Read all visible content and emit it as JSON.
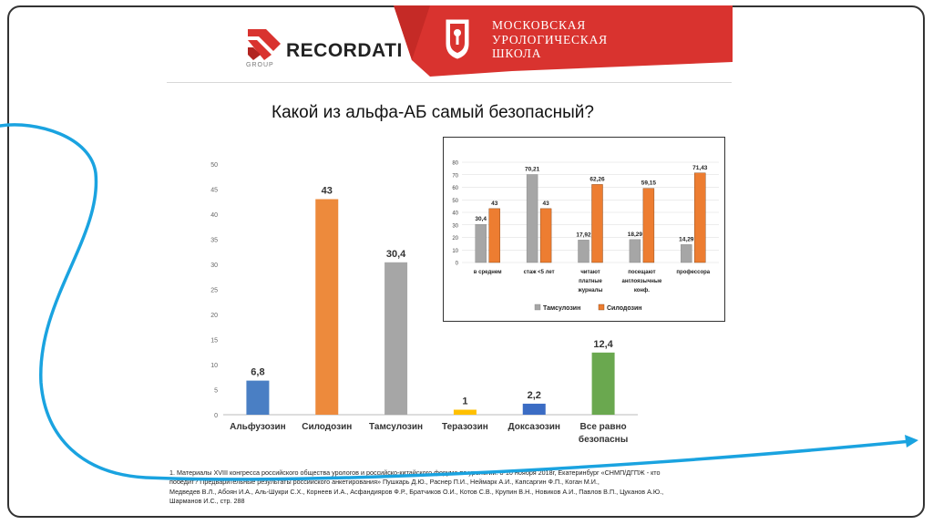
{
  "logo": {
    "brand": "RECORDATI",
    "group": "GROUP"
  },
  "school": {
    "lines": [
      "МОСКОВСКАЯ",
      "УРОЛОГИЧЕСКАЯ",
      "ШКОЛА"
    ]
  },
  "title": "Какой из альфа-АБ самый безопасный?",
  "chart_data": [
    {
      "type": "bar",
      "categories": [
        "Альфузозин",
        "Силодозин",
        "Тамсулозин",
        "Теразозин",
        "Доксазозин",
        "Все равно безопасны"
      ],
      "category_lines": [
        [
          "Альфузозин"
        ],
        [
          "Силодозин"
        ],
        [
          "Тамсулозин"
        ],
        [
          "Теразозин"
        ],
        [
          "Доксазозин"
        ],
        [
          "Все равно",
          "безопасны"
        ]
      ],
      "values": [
        6.8,
        43,
        30.4,
        1,
        2.2,
        12.4
      ],
      "value_labels": [
        "6,8",
        "43",
        "30,4",
        "1",
        "2,2",
        "12,4"
      ],
      "colors": [
        "#4a7fc4",
        "#ed8a3c",
        "#a6a6a6",
        "#ffc000",
        "#3b6cc4",
        "#6aa84f"
      ],
      "ylim": [
        0,
        50
      ],
      "yticks": [
        0,
        5,
        10,
        15,
        20,
        25,
        30,
        35,
        40,
        45,
        50
      ],
      "grid": false
    },
    {
      "type": "bar",
      "categories": [
        "в среднем",
        "стаж <5 лет",
        "читают платные журналы",
        "посещают англоязычные конф.",
        "профессора"
      ],
      "category_lines": [
        [
          "в среднем"
        ],
        [
          "стаж <5 лет"
        ],
        [
          "читают",
          "платные",
          "журналы"
        ],
        [
          "посещают",
          "англоязычные",
          "конф."
        ],
        [
          "профессора"
        ]
      ],
      "series": [
        {
          "name": "Тамсулозин",
          "values": [
            30.4,
            70.21,
            17.92,
            18.29,
            14.29
          ],
          "labels": [
            "30,4",
            "70,21",
            "17,92",
            "18,29",
            "14,29"
          ],
          "color": "#a6a6a6"
        },
        {
          "name": "Силодозин",
          "values": [
            43,
            43,
            62.26,
            59.15,
            71.43
          ],
          "labels": [
            "43",
            "43",
            "62,26",
            "59,15",
            "71,43"
          ],
          "color": "#ed7d31"
        }
      ],
      "ylim": [
        0,
        80
      ],
      "yticks": [
        0,
        10,
        20,
        30,
        40,
        50,
        60,
        70,
        80
      ],
      "grid": true,
      "legend": "bottom"
    }
  ],
  "footnote": {
    "lines": [
      "1. Материалы XVIII конгресса российского общества урологов и российско-китайского форума по урологии. 8-10 ноября 2018г, Екатеринбург «СНМП/ДГПЖ - кто",
      "победит? Предварительные результаты российского анкетирования» Пушкарь Д.Ю., Раснер П.И., Неймарк А.И., Капсаргин Ф.П., Коган М.И.,",
      "Медведев В.Л., Абоян И.А., Аль-Шукри С.Х., Корнеев И.А., Асфандияров Ф.Р., Братчиков О.И., Котов С.В., Крупин В.Н., Новиков А.И., Павлов В.П., Цуканов А.Ю.,",
      "Шарманов И.С., стр. 288"
    ]
  },
  "colors": {
    "banner_red": "#d9332f",
    "arrow_blue": "#1aa3e0"
  }
}
